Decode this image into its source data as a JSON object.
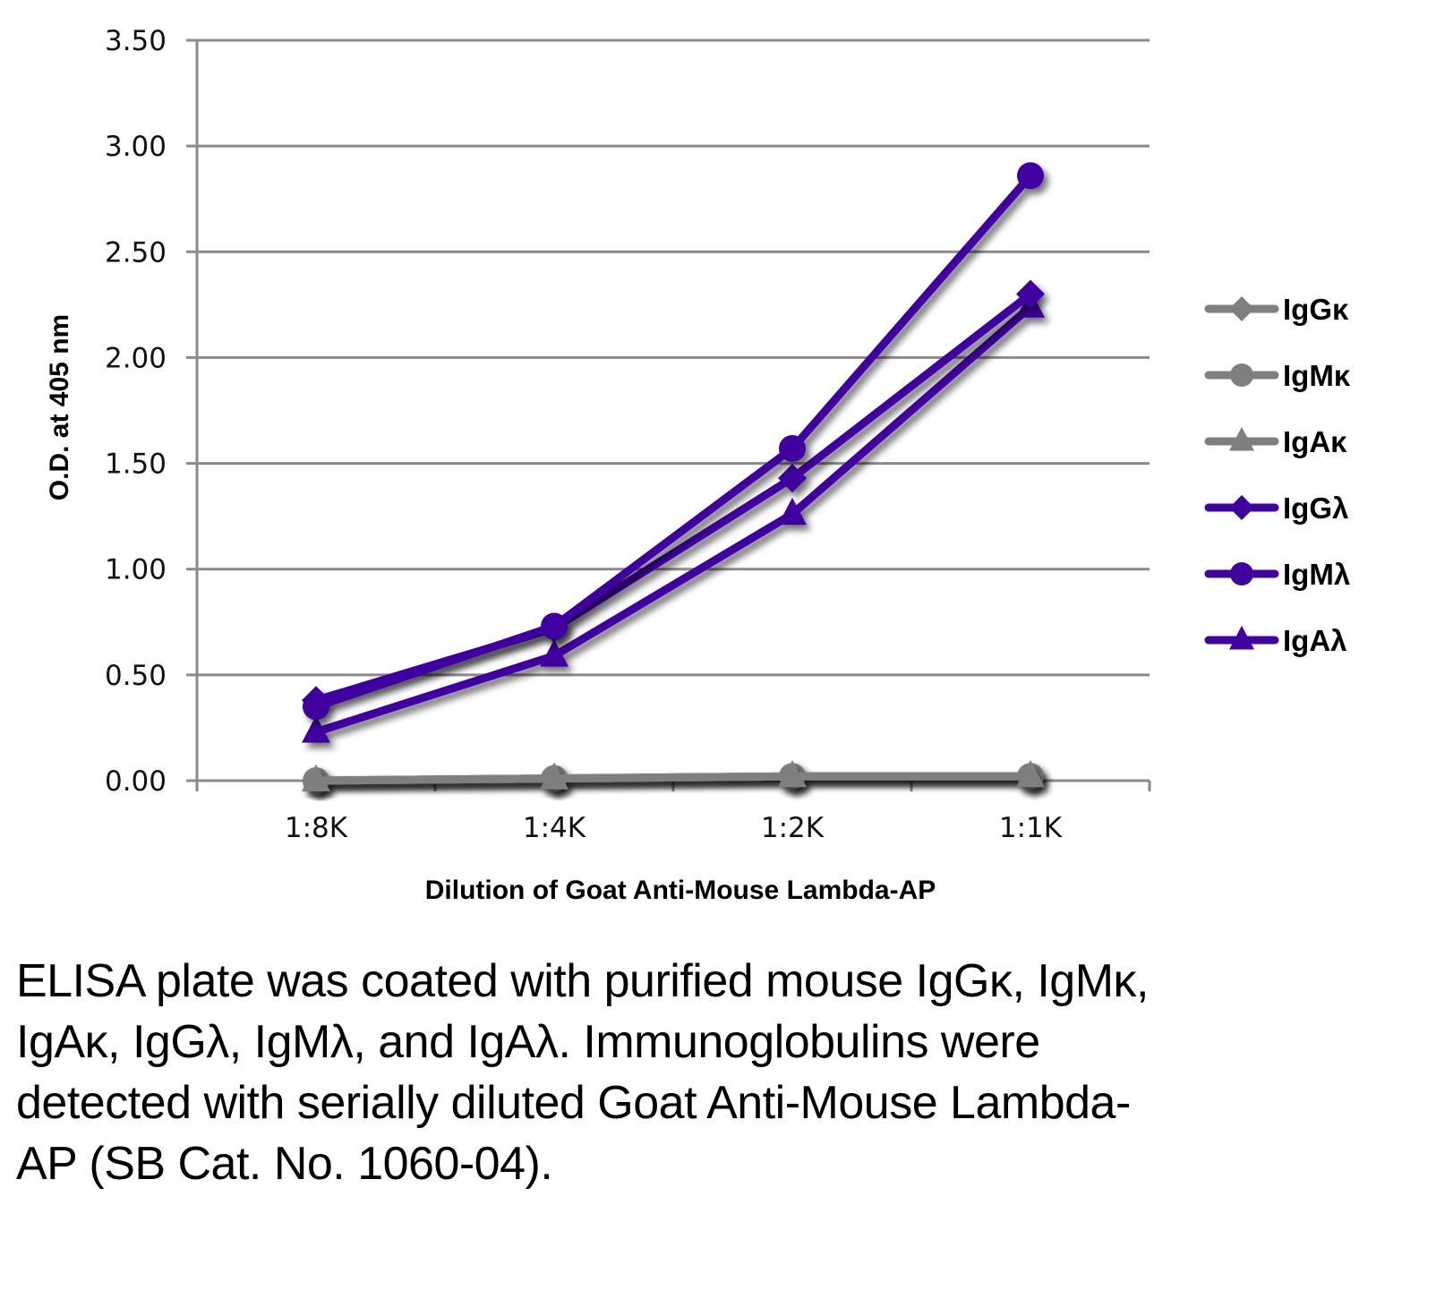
{
  "chart_data": {
    "type": "line",
    "title": "",
    "xlabel": "Dilution of Goat Anti-Mouse Lambda-AP",
    "ylabel": "O.D. at 405 nm",
    "categories": [
      "1:8K",
      "1:4K",
      "1:2K",
      "1:1K"
    ],
    "ylim": [
      0,
      3.5
    ],
    "yticks": [
      "0.00",
      "0.50",
      "1.00",
      "1.50",
      "2.00",
      "2.50",
      "3.00",
      "3.50"
    ],
    "ytick_values": [
      0,
      0.5,
      1.0,
      1.5,
      2.0,
      2.5,
      3.0,
      3.5
    ],
    "grid": true,
    "legend_position": "right",
    "series": [
      {
        "name": "IgGκ",
        "marker": "diamond",
        "color": "#7f7f7f",
        "values": [
          0.0,
          0.01,
          0.02,
          0.02
        ]
      },
      {
        "name": "IgMκ",
        "marker": "circle",
        "color": "#7f7f7f",
        "values": [
          0.0,
          0.01,
          0.02,
          0.02
        ]
      },
      {
        "name": "IgAκ",
        "marker": "triangle",
        "color": "#7f7f7f",
        "values": [
          0.0,
          0.01,
          0.02,
          0.02
        ]
      },
      {
        "name": "IgGλ",
        "marker": "diamond",
        "color": "#3f04a0",
        "values": [
          0.38,
          0.72,
          1.43,
          2.3
        ]
      },
      {
        "name": "IgMλ",
        "marker": "circle",
        "color": "#3f04a0",
        "values": [
          0.35,
          0.73,
          1.57,
          2.86
        ]
      },
      {
        "name": "IgAλ",
        "marker": "triangle",
        "color": "#3f04a0",
        "values": [
          0.23,
          0.59,
          1.26,
          2.24
        ]
      }
    ]
  },
  "caption": "ELISA plate was coated with purified mouse IgGκ, IgMκ, IgAκ, IgGλ, IgMλ, and IgAλ. Immunoglobulins were detected with serially diluted Goat Anti-Mouse Lambda-AP (SB Cat. No. 1060-04)."
}
